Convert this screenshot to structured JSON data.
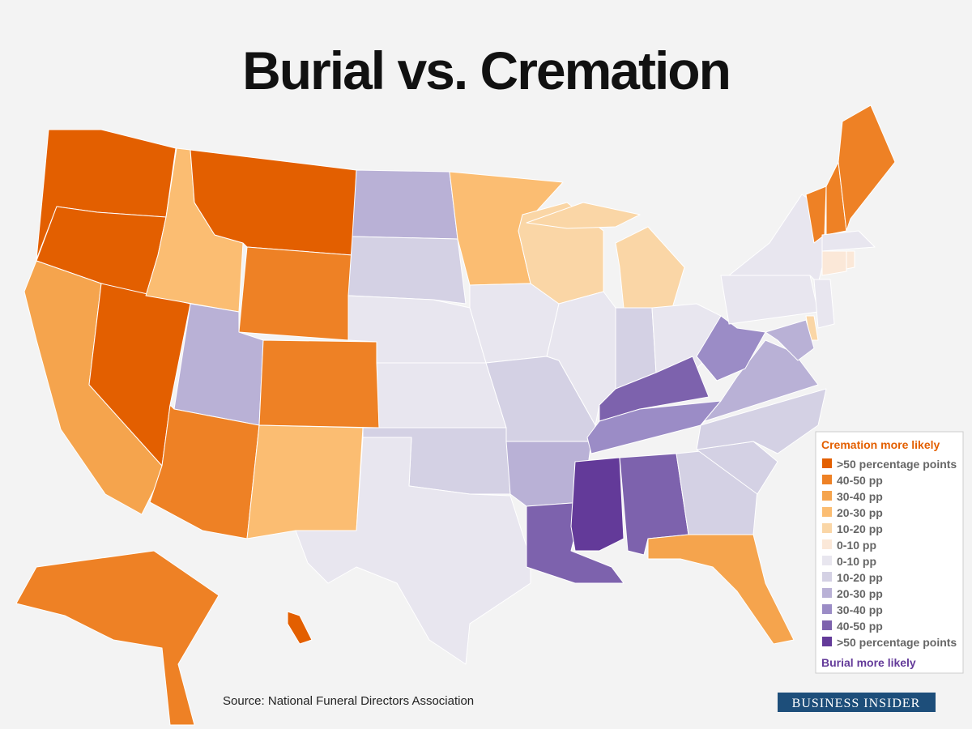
{
  "title": "Burial vs. Cremation",
  "legend": {
    "top_heading": "Cremation more likely",
    "items": [
      {
        "label": ">50 percentage points",
        "color": "#e35f00"
      },
      {
        "label": "40-50 pp",
        "color": "#ee8125"
      },
      {
        "label": "30-40 pp",
        "color": "#f5a44d"
      },
      {
        "label": "20-30 pp",
        "color": "#fbbd72"
      },
      {
        "label": "10-20 pp",
        "color": "#fad6a6"
      },
      {
        "label": "0-10 pp",
        "color": "#fbe8d8"
      },
      {
        "label": "0-10 pp",
        "color": "#e8e6ef"
      },
      {
        "label": "10-20 pp",
        "color": "#d4d1e4"
      },
      {
        "label": "20-30 pp",
        "color": "#b9b1d6"
      },
      {
        "label": "30-40 pp",
        "color": "#9b8cc6"
      },
      {
        "label": "40-50 pp",
        "color": "#7d62ad"
      },
      {
        "label": ">50 percentage points",
        "color": "#633a99"
      }
    ],
    "bottom_heading": "Burial more likely"
  },
  "source": "Source: National Funeral Directors Association",
  "logo": "BUSINESS INSIDER"
}
